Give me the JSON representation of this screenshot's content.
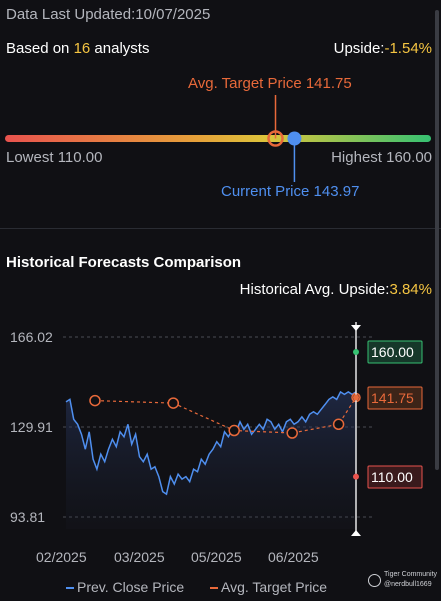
{
  "header": {
    "updated_label": "Data Last Updated:",
    "updated_date": "10/07/2025",
    "analysts_prefix": "Based on ",
    "analysts_count": "16",
    "analysts_suffix": " analysts",
    "upside_label": "Upside:",
    "upside_value": "-1.54%"
  },
  "gauge": {
    "target_text": "Avg. Target Price 141.75",
    "current_text": "Current Price 143.97",
    "lowest_text": "Lowest 110.00",
    "highest_text": "Highest 160.00",
    "low": 110.0,
    "high": 160.0,
    "target": 141.75,
    "current": 143.97,
    "colors": {
      "target": "#e8693a",
      "current": "#4f8fef",
      "red": "#e8534e",
      "yellow": "#dcc53b",
      "green": "#36c172"
    }
  },
  "history": {
    "title": "Historical Forecasts Comparison",
    "upside_label": "Historical Avg. Upside:",
    "upside_value": "3.84%"
  },
  "chart_data": {
    "type": "line",
    "x_ticks": [
      "02/2025",
      "03/2025",
      "05/2025",
      "06/2025"
    ],
    "y_ticks": [
      "166.02",
      "129.91",
      "93.81"
    ],
    "ylim": [
      93.81,
      166.02
    ],
    "series": [
      {
        "name": "Prev. Close Price",
        "color": "#4f8fef",
        "values": [
          140,
          141,
          133,
          131,
          127,
          121,
          128,
          117,
          113,
          119,
          116,
          121,
          125,
          122,
          128,
          126,
          131,
          123,
          127,
          118,
          116,
          119,
          113,
          114,
          110,
          104,
          103,
          110,
          107,
          111,
          109,
          110,
          108,
          113,
          112,
          117,
          115,
          119,
          121,
          124,
          122,
          128,
          126,
          129,
          128,
          132,
          129,
          131,
          127,
          129,
          131,
          129,
          133,
          132,
          129,
          131,
          128,
          132,
          133,
          131,
          132,
          134,
          132,
          135,
          136,
          135,
          137,
          139,
          141,
          142,
          141,
          144,
          143,
          144,
          143,
          144
        ]
      },
      {
        "name": "Avg. Target Price",
        "color": "#e8693a",
        "points": [
          [
            0.1,
            140.5
          ],
          [
            0.37,
            139.5
          ],
          [
            0.58,
            128.5
          ],
          [
            0.78,
            127.5
          ],
          [
            0.94,
            131.0
          ],
          [
            1.0,
            141.75
          ]
        ]
      }
    ],
    "markers": [
      {
        "label": "160.00",
        "value": 160.0,
        "color": "#36c172",
        "bg": "#16382a"
      },
      {
        "label": "141.75",
        "value": 141.75,
        "color": "#e8693a",
        "bg": "#3c2418"
      },
      {
        "label": "110.00",
        "value": 110.0,
        "color": "#e8534e",
        "bg": "#3a1a1c"
      }
    ],
    "grid": true
  },
  "legend": {
    "close_label": "Prev. Close Price",
    "target_label": "Avg. Target Price"
  },
  "watermark": {
    "line1": "Tiger Community",
    "line2": "@nerdbull1669"
  }
}
